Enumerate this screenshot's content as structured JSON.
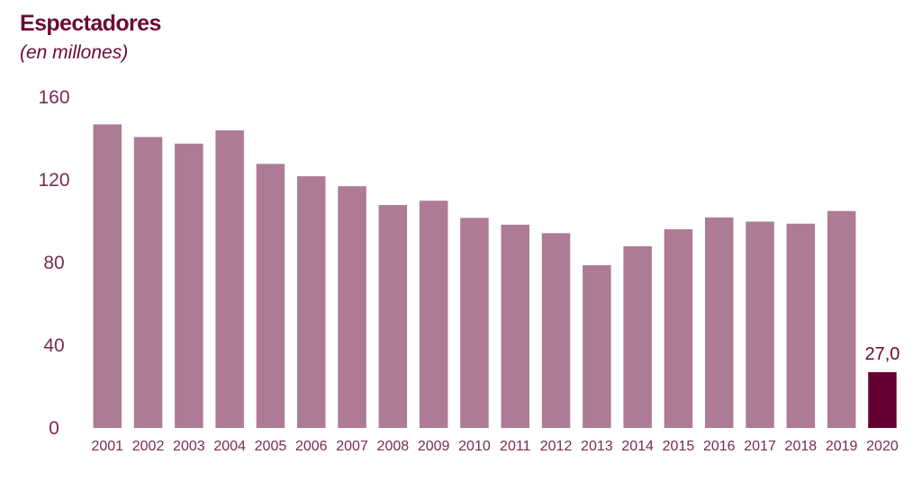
{
  "chart_data": {
    "type": "bar",
    "title": "Espectadores",
    "subtitle": "(en millones)",
    "xlabel": "",
    "ylabel": "",
    "ylim": [
      0,
      160
    ],
    "yticks": [
      "0",
      "40",
      "80",
      "120",
      "160"
    ],
    "grid": false,
    "categories": [
      "2001",
      "2002",
      "2003",
      "2004",
      "2005",
      "2006",
      "2007",
      "2008",
      "2009",
      "2010",
      "2011",
      "2012",
      "2013",
      "2014",
      "2015",
      "2016",
      "2017",
      "2018",
      "2019",
      "2020"
    ],
    "values": [
      146.8,
      140.7,
      137.5,
      143.9,
      127.7,
      121.7,
      116.9,
      107.8,
      109.9,
      101.6,
      98.3,
      94.2,
      78.7,
      87.9,
      96.1,
      101.8,
      99.8,
      98.8,
      104.9,
      27.0
    ],
    "data_labels": [
      {
        "category": "2020",
        "text": "27,0"
      }
    ],
    "colors": {
      "bar": "#ad7b96",
      "highlight": "#650033",
      "text": "#7a2a4f",
      "title": "#6b0a34"
    },
    "highlight_category": "2020"
  }
}
